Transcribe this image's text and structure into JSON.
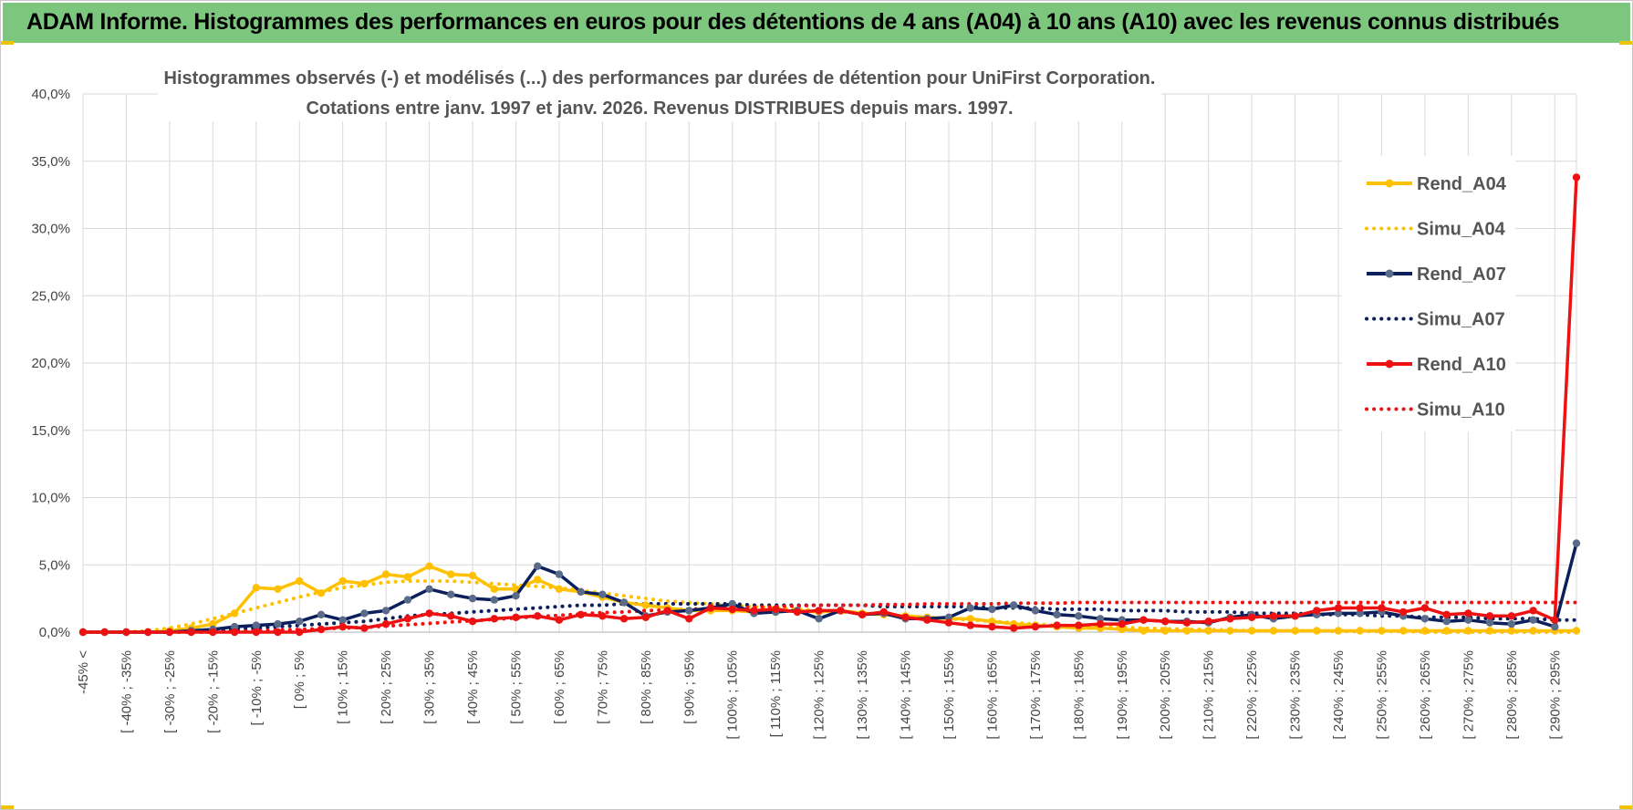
{
  "banner": {
    "title": "ADAM Informe. Histogrammes des performances en euros pour des détentions de 4 ans (A04) à 10 ans (A10) avec les revenus connus distribués",
    "color": "#7dc67d"
  },
  "chart_data": {
    "type": "line",
    "title_line1": "Histogrammes observés (-) et modélisés (...) des performances par durées de détention pour UniFirst Corporation.",
    "title_line2": "Cotations entre janv. 1997 et janv. 2026. Revenus DISTRIBUES depuis mars. 1997.",
    "xlabel": "",
    "ylabel": "",
    "ylim": [
      0,
      40
    ],
    "yticks": [
      "0,0%",
      "5,0%",
      "10,0%",
      "15,0%",
      "20,0%",
      "25,0%",
      "30,0%",
      "35,0%",
      "40,0%"
    ],
    "x_tick_labels": [
      "-45% <",
      "[ -40% ; -35%",
      "[ -30% ; -25%",
      "[ -20% ; -15%",
      "[ -10% ; -5%",
      "[ 0% ; 5%",
      "[ 10% ; 15%",
      "[ 20% ; 25%",
      "[ 30% ; 35%",
      "[ 40% ; 45%",
      "[ 50% ; 55%",
      "[ 60% ; 65%",
      "[ 70% ; 75%",
      "[ 80% ; 85%",
      "[ 90% ; 95%",
      "[ 100% ; 105%",
      "[ 110% ; 115%",
      "[ 120% ; 125%",
      "[ 130% ; 135%",
      "[ 140% ; 145%",
      "[ 150% ; 155%",
      "[ 160% ; 165%",
      "[ 170% ; 175%",
      "[ 180% ; 185%",
      "[ 190% ; 195%",
      "[ 200% ; 205%",
      "[ 210% ; 215%",
      "[ 220% ; 225%",
      "[ 230% ; 235%",
      "[ 240% ; 245%",
      "[ 250% ; 255%",
      "[ 260% ; 265%",
      "[ 270% ; 275%",
      "[ 280% ; 285%",
      "[ 290% ; 295%"
    ],
    "n_points": 70,
    "legend_position": "top-right",
    "series": [
      {
        "name": "Rend_A04",
        "color": "#ffc000",
        "style": "solid",
        "values": [
          0,
          0,
          0,
          0,
          0.1,
          0.3,
          0.6,
          1.4,
          3.3,
          3.2,
          3.8,
          2.9,
          3.8,
          3.6,
          4.3,
          4.1,
          4.9,
          4.3,
          4.2,
          3.2,
          3.2,
          3.9,
          3.2,
          3.0,
          2.6,
          2.2,
          2.0,
          1.8,
          1.6,
          1.6,
          1.6,
          1.5,
          1.5,
          1.6,
          1.5,
          1.6,
          1.4,
          1.3,
          1.2,
          1.1,
          1.0,
          1.0,
          0.8,
          0.6,
          0.5,
          0.4,
          0.3,
          0.3,
          0.2,
          0.1,
          0.1,
          0.1,
          0.1,
          0.1,
          0.1,
          0.1,
          0.1,
          0.1,
          0.1,
          0.1,
          0.1,
          0.1,
          0.1,
          0.1,
          0.1,
          0.1,
          0.1,
          0.1,
          0.1,
          0.1
        ]
      },
      {
        "name": "Simu_A04",
        "color": "#ffc000",
        "style": "dotted",
        "values": [
          0,
          0,
          0,
          0.1,
          0.3,
          0.6,
          1.0,
          1.4,
          1.8,
          2.2,
          2.6,
          3.0,
          3.3,
          3.5,
          3.7,
          3.8,
          3.8,
          3.8,
          3.7,
          3.6,
          3.5,
          3.4,
          3.3,
          3.1,
          2.9,
          2.7,
          2.5,
          2.3,
          2.2,
          2.1,
          2.0,
          1.9,
          1.8,
          1.7,
          1.6,
          1.5,
          1.4,
          1.3,
          1.2,
          1.1,
          1.0,
          0.9,
          0.8,
          0.7,
          0.6,
          0.5,
          0.45,
          0.4,
          0.35,
          0.3,
          0.25,
          0.2,
          0.2,
          0.15,
          0.1,
          0.1,
          0.1,
          0.1,
          0.05,
          0.05,
          0.05,
          0.05,
          0,
          0,
          0,
          0,
          0,
          0,
          0,
          0
        ]
      },
      {
        "name": "Rend_A07",
        "color": "#0a1f5c",
        "style": "solid",
        "values": [
          0,
          0,
          0,
          0,
          0,
          0.1,
          0.2,
          0.4,
          0.5,
          0.6,
          0.8,
          1.3,
          0.9,
          1.4,
          1.6,
          2.4,
          3.2,
          2.8,
          2.5,
          2.4,
          2.7,
          4.9,
          4.3,
          3.0,
          2.8,
          2.2,
          1.2,
          1.5,
          1.6,
          1.8,
          2.1,
          1.4,
          1.5,
          1.6,
          1.0,
          1.6,
          1.3,
          1.4,
          1.0,
          1.0,
          1.1,
          1.8,
          1.7,
          2.0,
          1.6,
          1.3,
          1.2,
          1.0,
          0.9,
          0.9,
          0.8,
          0.8,
          0.7,
          1.1,
          1.3,
          1.0,
          1.2,
          1.3,
          1.4,
          1.4,
          1.5,
          1.2,
          1.0,
          0.8,
          0.9,
          0.7,
          0.6,
          0.9,
          0.4,
          6.6
        ]
      },
      {
        "name": "Simu_A07",
        "color": "#0a1f5c",
        "style": "dotted",
        "values": [
          0,
          0,
          0,
          0,
          0,
          0.05,
          0.1,
          0.2,
          0.3,
          0.4,
          0.5,
          0.6,
          0.7,
          0.8,
          1.0,
          1.2,
          1.3,
          1.4,
          1.5,
          1.6,
          1.7,
          1.8,
          1.9,
          2.0,
          2.0,
          2.1,
          2.1,
          2.1,
          2.1,
          2.1,
          2.1,
          2.0,
          2.0,
          2.0,
          2.0,
          2.0,
          2.0,
          1.9,
          1.9,
          1.9,
          1.9,
          1.9,
          1.8,
          1.8,
          1.8,
          1.7,
          1.7,
          1.7,
          1.6,
          1.6,
          1.6,
          1.5,
          1.5,
          1.5,
          1.4,
          1.4,
          1.4,
          1.3,
          1.3,
          1.3,
          1.2,
          1.2,
          1.1,
          1.1,
          1.1,
          1.0,
          1.0,
          1.0,
          0.9,
          0.9
        ]
      },
      {
        "name": "Rend_A10",
        "color": "#ee1111",
        "style": "solid",
        "values": [
          0,
          0,
          0,
          0,
          0,
          0,
          0,
          0,
          0,
          0,
          0,
          0.2,
          0.4,
          0.3,
          0.6,
          1.0,
          1.4,
          1.2,
          0.8,
          1.0,
          1.1,
          1.2,
          0.9,
          1.3,
          1.2,
          1.0,
          1.1,
          1.6,
          1.0,
          1.8,
          1.7,
          1.6,
          1.7,
          1.5,
          1.6,
          1.6,
          1.3,
          1.5,
          1.1,
          0.9,
          0.7,
          0.5,
          0.4,
          0.3,
          0.4,
          0.5,
          0.5,
          0.6,
          0.6,
          0.9,
          0.8,
          0.7,
          0.8,
          1.0,
          1.1,
          1.2,
          1.2,
          1.6,
          1.8,
          1.8,
          1.8,
          1.5,
          1.8,
          1.3,
          1.4,
          1.2,
          1.2,
          1.6,
          0.9,
          33.8
        ]
      },
      {
        "name": "Simu_A10",
        "color": "#ee1111",
        "style": "dotted",
        "values": [
          0,
          0,
          0,
          0,
          0,
          0,
          0,
          0.05,
          0.1,
          0.15,
          0.2,
          0.25,
          0.3,
          0.35,
          0.45,
          0.55,
          0.65,
          0.75,
          0.85,
          0.95,
          1.05,
          1.15,
          1.25,
          1.35,
          1.45,
          1.5,
          1.6,
          1.65,
          1.7,
          1.75,
          1.8,
          1.85,
          1.9,
          1.95,
          2.0,
          2.0,
          2.0,
          2.05,
          2.05,
          2.1,
          2.1,
          2.1,
          2.1,
          2.15,
          2.15,
          2.15,
          2.2,
          2.2,
          2.2,
          2.2,
          2.2,
          2.2,
          2.2,
          2.2,
          2.2,
          2.2,
          2.2,
          2.2,
          2.2,
          2.2,
          2.2,
          2.2,
          2.2,
          2.2,
          2.2,
          2.2,
          2.2,
          2.2,
          2.2,
          2.2
        ]
      }
    ]
  }
}
